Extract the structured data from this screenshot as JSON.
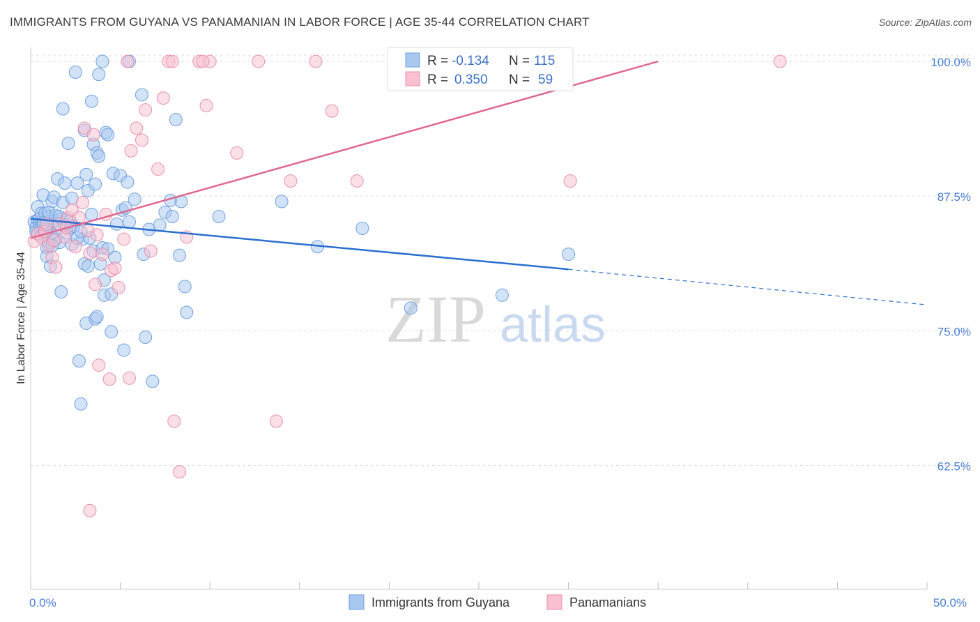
{
  "title": "IMMIGRANTS FROM GUYANA VS PANAMANIAN IN LABOR FORCE | AGE 35-44 CORRELATION CHART",
  "source": "Source: ZipAtlas.com",
  "watermark": {
    "zip": "ZIP",
    "atlas": "atlas"
  },
  "colors": {
    "blue_fill": "#a8c8f0",
    "blue_stroke": "#6f9fe0",
    "blue_line": "#2a6fd0",
    "pink_fill": "#f8c0d0",
    "pink_stroke": "#e890ac",
    "pink_line": "#e06890",
    "tick_text": "#4a7fd0",
    "grid": "#dddddd"
  },
  "legend": {
    "r_label": "R =",
    "n_label": "N =",
    "series": [
      {
        "r": "-0.134",
        "n": "115"
      },
      {
        "r": "0.350",
        "n": "59"
      }
    ]
  },
  "chart_data": {
    "type": "scatter",
    "title": "IMMIGRANTS FROM GUYANA VS PANAMANIAN IN LABOR FORCE | AGE 35-44 CORRELATION CHART",
    "xlabel": "",
    "ylabel": "In Labor Force | Age 35-44",
    "xlim": [
      0,
      50
    ],
    "ylim": [
      51,
      101.3
    ],
    "x_tick_labels": [
      "0.0%",
      "50.0%"
    ],
    "y_ticks": [
      62.5,
      75.0,
      87.5,
      100.0
    ],
    "y_tick_labels": [
      "62.5%",
      "75.0%",
      "87.5%",
      "100.0%"
    ],
    "grid": "horizontal dashed",
    "legend_position": "top-center",
    "series": [
      {
        "name": "Immigrants from Guyana",
        "color": "#a8c8f0",
        "trend": {
          "x0": 0,
          "y0": 85.4,
          "x1": 30,
          "y1": 80.7,
          "dashed_to_x": 50,
          "dashed_to_y": 77.4
        },
        "points": [
          [
            0.2,
            85.1
          ],
          [
            0.3,
            84.6
          ],
          [
            0.3,
            84.2
          ],
          [
            0.4,
            85.3
          ],
          [
            0.4,
            86.5
          ],
          [
            0.5,
            84.8
          ],
          [
            0.5,
            85.4
          ],
          [
            0.6,
            84.5
          ],
          [
            0.6,
            85.9
          ],
          [
            0.7,
            87.6
          ],
          [
            0.7,
            84.3
          ],
          [
            0.8,
            85.9
          ],
          [
            0.8,
            83.8
          ],
          [
            0.9,
            82.7
          ],
          [
            0.9,
            81.9
          ],
          [
            1.0,
            85.6
          ],
          [
            1.0,
            83.2
          ],
          [
            1.1,
            81.0
          ],
          [
            1.1,
            84.9
          ],
          [
            1.2,
            87.0
          ],
          [
            1.2,
            84.0
          ],
          [
            1.3,
            87.4
          ],
          [
            1.3,
            85.2
          ],
          [
            1.4,
            83.5
          ],
          [
            1.5,
            89.1
          ],
          [
            1.5,
            84.9
          ],
          [
            1.6,
            83.2
          ],
          [
            1.7,
            85.4
          ],
          [
            1.7,
            78.6
          ],
          [
            1.8,
            86.9
          ],
          [
            1.8,
            95.6
          ],
          [
            1.9,
            88.7
          ],
          [
            2.0,
            85.3
          ],
          [
            2.1,
            92.4
          ],
          [
            2.2,
            84.5
          ],
          [
            2.3,
            87.3
          ],
          [
            2.3,
            83.0
          ],
          [
            2.4,
            84.7
          ],
          [
            2.5,
            99.0
          ],
          [
            2.6,
            88.7
          ],
          [
            2.7,
            72.2
          ],
          [
            2.8,
            68.2
          ],
          [
            2.9,
            83.5
          ],
          [
            3.0,
            81.2
          ],
          [
            3.0,
            93.6
          ],
          [
            3.1,
            89.5
          ],
          [
            3.1,
            75.7
          ],
          [
            3.2,
            88.0
          ],
          [
            3.2,
            81.0
          ],
          [
            3.3,
            83.6
          ],
          [
            3.4,
            96.3
          ],
          [
            3.5,
            82.4
          ],
          [
            3.5,
            92.3
          ],
          [
            3.6,
            88.6
          ],
          [
            3.6,
            76.1
          ],
          [
            3.7,
            76.3
          ],
          [
            3.7,
            91.5
          ],
          [
            3.8,
            91.2
          ],
          [
            3.8,
            98.8
          ],
          [
            3.9,
            81.2
          ],
          [
            4.0,
            82.7
          ],
          [
            4.0,
            100.0
          ],
          [
            4.1,
            79.7
          ],
          [
            4.1,
            78.3
          ],
          [
            4.2,
            93.4
          ],
          [
            4.3,
            93.2
          ],
          [
            4.3,
            82.6
          ],
          [
            4.5,
            74.9
          ],
          [
            4.5,
            78.4
          ],
          [
            4.6,
            89.6
          ],
          [
            4.7,
            81.8
          ],
          [
            4.8,
            84.9
          ],
          [
            5.0,
            89.4
          ],
          [
            5.1,
            86.2
          ],
          [
            5.2,
            73.2
          ],
          [
            5.3,
            86.4
          ],
          [
            5.4,
            88.8
          ],
          [
            5.5,
            100.0
          ],
          [
            5.5,
            85.1
          ],
          [
            5.8,
            87.2
          ],
          [
            6.2,
            96.9
          ],
          [
            6.3,
            82.1
          ],
          [
            6.4,
            74.4
          ],
          [
            6.6,
            84.4
          ],
          [
            6.8,
            70.3
          ],
          [
            7.2,
            84.8
          ],
          [
            7.5,
            86.0
          ],
          [
            7.8,
            87.1
          ],
          [
            7.9,
            85.6
          ],
          [
            8.1,
            94.6
          ],
          [
            8.3,
            82.0
          ],
          [
            8.4,
            87.0
          ],
          [
            8.6,
            79.1
          ],
          [
            8.7,
            76.7
          ],
          [
            10.5,
            85.6
          ],
          [
            14.0,
            87.0
          ],
          [
            16.0,
            82.8
          ],
          [
            18.5,
            84.5
          ],
          [
            21.2,
            77.1
          ],
          [
            26.3,
            78.3
          ],
          [
            30.0,
            82.1
          ],
          [
            0.6,
            84.7
          ],
          [
            1.0,
            86.0
          ],
          [
            1.4,
            85.7
          ],
          [
            2.0,
            84.1
          ],
          [
            2.6,
            83.6
          ],
          [
            0.9,
            84.4
          ],
          [
            1.6,
            85.6
          ],
          [
            2.2,
            85.2
          ],
          [
            0.4,
            84.0
          ],
          [
            3.4,
            85.8
          ],
          [
            1.2,
            82.9
          ],
          [
            2.8,
            84.2
          ],
          [
            0.7,
            85.0
          ],
          [
            1.9,
            84.8
          ]
        ]
      },
      {
        "name": "Panamanians",
        "color": "#f8c0d0",
        "trend": {
          "x0": 0,
          "y0": 83.6,
          "x1": 35,
          "y1": 100.0
        },
        "points": [
          [
            0.2,
            83.3
          ],
          [
            0.4,
            84.0
          ],
          [
            0.6,
            83.7
          ],
          [
            0.8,
            84.2
          ],
          [
            1.0,
            82.9
          ],
          [
            1.2,
            81.8
          ],
          [
            1.4,
            80.9
          ],
          [
            1.6,
            84.9
          ],
          [
            1.9,
            83.7
          ],
          [
            2.1,
            85.5
          ],
          [
            2.3,
            86.2
          ],
          [
            2.5,
            82.8
          ],
          [
            2.7,
            85.5
          ],
          [
            2.9,
            86.9
          ],
          [
            3.0,
            93.8
          ],
          [
            3.2,
            84.3
          ],
          [
            3.3,
            82.2
          ],
          [
            3.5,
            93.2
          ],
          [
            3.6,
            79.3
          ],
          [
            3.8,
            71.8
          ],
          [
            4.0,
            82.1
          ],
          [
            4.2,
            85.8
          ],
          [
            4.4,
            70.5
          ],
          [
            4.5,
            80.6
          ],
          [
            4.7,
            80.8
          ],
          [
            4.9,
            79.0
          ],
          [
            5.2,
            83.5
          ],
          [
            5.5,
            70.6
          ],
          [
            5.6,
            91.7
          ],
          [
            5.9,
            93.8
          ],
          [
            6.2,
            92.7
          ],
          [
            6.4,
            95.5
          ],
          [
            6.7,
            82.4
          ],
          [
            7.1,
            90.0
          ],
          [
            7.4,
            96.6
          ],
          [
            7.7,
            100.0
          ],
          [
            7.9,
            100.0
          ],
          [
            8.0,
            66.6
          ],
          [
            8.3,
            61.9
          ],
          [
            8.7,
            83.7
          ],
          [
            9.4,
            100.0
          ],
          [
            9.8,
            95.9
          ],
          [
            10.0,
            100.0
          ],
          [
            11.5,
            91.5
          ],
          [
            12.7,
            100.0
          ],
          [
            13.7,
            66.6
          ],
          [
            14.5,
            88.9
          ],
          [
            15.9,
            100.0
          ],
          [
            16.8,
            95.4
          ],
          [
            18.2,
            88.9
          ],
          [
            30.1,
            88.9
          ],
          [
            41.8,
            100.0
          ],
          [
            3.3,
            58.3
          ],
          [
            1.3,
            83.4
          ],
          [
            2.0,
            84.6
          ],
          [
            0.9,
            84.9
          ],
          [
            3.7,
            83.9
          ],
          [
            9.6,
            100.0
          ],
          [
            5.4,
            100.0
          ]
        ]
      }
    ]
  }
}
